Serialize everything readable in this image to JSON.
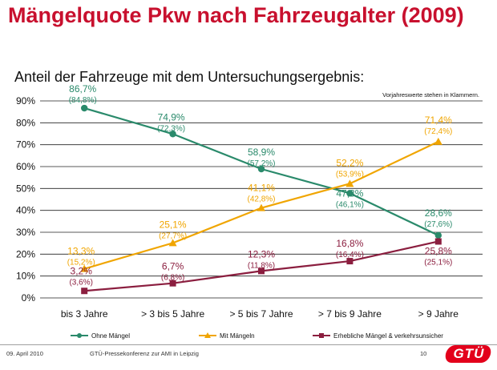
{
  "title": "Mängelquote Pkw nach Fahrzeugalter (2009)",
  "subtitle": "Anteil der Fahrzeuge mit dem Untersuchungsergebnis:",
  "note": "Vorjahreswerte stehen in Klammern.",
  "footer": {
    "date": "09. April 2010",
    "conference": "GTÜ-Pressekonferenz zur AMI in Leipzig",
    "page": "10",
    "logo": "GTÜ"
  },
  "colors": {
    "green": "#2a8a6b",
    "orange": "#f0a500",
    "darkred": "#8b1e3f",
    "title": "#c8102e"
  },
  "chart_data": {
    "type": "line",
    "title": "Mängelquote Pkw nach Fahrzeugalter (2009)",
    "categories": [
      "bis 3 Jahre",
      "> 3 bis 5 Jahre",
      "> 5 bis 7 Jahre",
      "> 7 bis 9 Jahre",
      "> 9 Jahre"
    ],
    "ylim": [
      0,
      90
    ],
    "yticks": [
      "0%",
      "10%",
      "20%",
      "30%",
      "40%",
      "50%",
      "60%",
      "70%",
      "80%",
      "90%"
    ],
    "legend_position": "bottom",
    "series": [
      {
        "name": "Ohne Mängel",
        "color": "#2a8a6b",
        "marker": "circle",
        "values": [
          86.7,
          74.9,
          58.9,
          47.8,
          28.6
        ],
        "labels": [
          "86,7%",
          "74,9%",
          "58,9%",
          "47,8%",
          "28,6%"
        ],
        "prev_labels": [
          "(84,8%)",
          "(72,3%)",
          "(57,2%)",
          "(46,1%)",
          "(27,6%)"
        ]
      },
      {
        "name": "Mit Mängeln",
        "color": "#f0a500",
        "marker": "triangle",
        "values": [
          13.3,
          25.1,
          41.1,
          52.2,
          71.4
        ],
        "labels": [
          "13,3%",
          "25,1%",
          "41,1%",
          "52,2%",
          "71,4%"
        ],
        "prev_labels": [
          "(15,2%)",
          "(27,7%)",
          "(42,8%)",
          "(53,9%)",
          "(72,4%)"
        ]
      },
      {
        "name": "Erhebliche Mängel & verkehrsunsicher",
        "color": "#8b1e3f",
        "marker": "square",
        "values": [
          3.2,
          6.7,
          12.3,
          16.8,
          25.8
        ],
        "labels": [
          "3,2%",
          "6,7%",
          "12,3%",
          "16,8%",
          "25,8%"
        ],
        "prev_labels": [
          "(3,6%)",
          "(6,8%)",
          "(11,8%)",
          "(16,4%)",
          "(25,1%)"
        ]
      }
    ]
  }
}
